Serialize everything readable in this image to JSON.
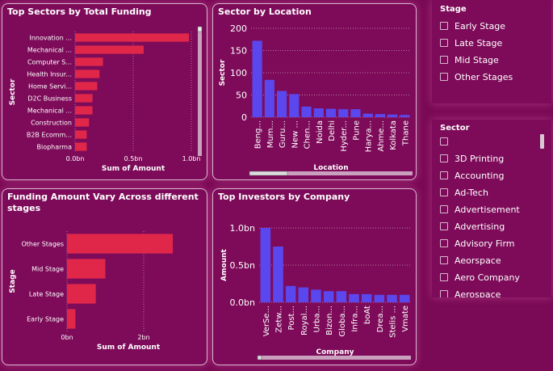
{
  "colors": {
    "bar_red": "#e0274a",
    "bar_blue": "#5b47ee",
    "card_bg": "#7d0b59",
    "page_bg": "#7a0a55"
  },
  "charts": {
    "top_sectors": {
      "title": "Top Sectors by Total Funding"
    },
    "location": {
      "title": "Sector by Location"
    },
    "stages": {
      "title_line1": "Funding Amount Vary Across different",
      "title_line2": "stages"
    },
    "investors": {
      "title": "Top Investors by Company"
    }
  },
  "chart_data": [
    {
      "id": "top_sectors",
      "type": "bar",
      "orientation": "horizontal",
      "title": "Top Sectors by Total Funding",
      "xlabel": "Sum of Amount",
      "ylabel": "Sector",
      "categories": [
        "Innovation ...",
        "Mechanical ...",
        "Computer S...",
        "Health Insur...",
        "Home Servi...",
        "D2C Business",
        "Mechanical ...",
        "Construction",
        "B2B Ecomm...",
        "Biopharma"
      ],
      "values": [
        0.98,
        0.59,
        0.24,
        0.21,
        0.19,
        0.15,
        0.15,
        0.12,
        0.1,
        0.1
      ],
      "xticks": [
        "0.0bn",
        "0.5bn",
        "1.0bn"
      ],
      "xlim": [
        0,
        1.0
      ]
    },
    {
      "id": "location",
      "type": "bar",
      "title": "Sector by Location",
      "xlabel": "Location",
      "ylabel": "Sector",
      "categories": [
        "Beng...",
        "Mum...",
        "Guru...",
        "New ...",
        "Chen...",
        "Noida",
        "Delhi",
        "Hyder...",
        "Pune",
        "Harya...",
        "Ahme...",
        "Kolkata",
        "Thane"
      ],
      "values": [
        172,
        84,
        59,
        52,
        24,
        20,
        19,
        18,
        18,
        8,
        7,
        6,
        5
      ],
      "yticks": [
        "0",
        "50",
        "100",
        "150",
        "200"
      ],
      "ylim": [
        0,
        200
      ]
    },
    {
      "id": "stages",
      "type": "bar",
      "orientation": "horizontal",
      "title": "Funding Amount Vary Across different stages",
      "xlabel": "Sum of Amount",
      "ylabel": "Stage",
      "categories": [
        "Other Stages",
        "Mid Stage",
        "Late Stage",
        "Early Stage"
      ],
      "values": [
        2.76,
        1.0,
        0.75,
        0.22
      ],
      "xticks": [
        "0bn",
        "2bn"
      ],
      "xlim": [
        0,
        3.2
      ]
    },
    {
      "id": "investors",
      "type": "bar",
      "title": "Top Investors by Company",
      "xlabel": "Company",
      "ylabel": "Amount",
      "categories": [
        "VerSe...",
        "Zetw...",
        "Post...",
        "Royal...",
        "Urba...",
        "Bizon...",
        "Globa...",
        "Infra...",
        "boAt",
        "Drea...",
        "Stelis ...",
        "Vmate"
      ],
      "values": [
        1.0,
        0.75,
        0.22,
        0.2,
        0.17,
        0.15,
        0.15,
        0.11,
        0.11,
        0.1,
        0.1,
        0.1
      ],
      "yticks": [
        "0.0bn",
        "0.5bn",
        "1.0bn"
      ],
      "ylim": [
        0,
        1.0
      ]
    }
  ],
  "stage_slicer": {
    "header": "Stage",
    "items": [
      "Early Stage",
      "Late Stage",
      "Mid Stage",
      "Other Stages"
    ]
  },
  "sector_slicer": {
    "header": "Sector",
    "items": [
      "",
      "3D Printing",
      "Accounting",
      "Ad-Tech",
      "Advertisement",
      "Advertising",
      "Advisory Firm",
      "Aeorspace",
      "Aero Company",
      "Aerospace"
    ]
  }
}
